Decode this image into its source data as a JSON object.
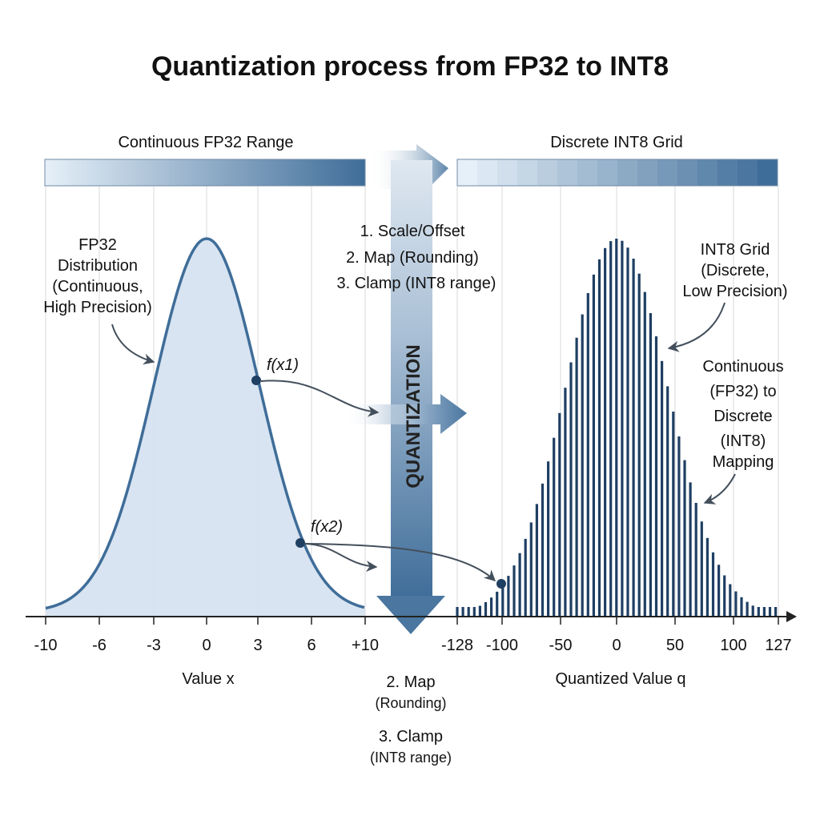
{
  "title": "Quantization process from FP32 to INT8",
  "left_bar_label": "Continuous FP32 Range",
  "right_bar_label": "Discrete INT8 Grid",
  "steps_top": [
    "1. Scale/Offset",
    "2. Map (Rounding)",
    "3. Clamp (INT8 range)"
  ],
  "vertical_label": "QUANTIZATION",
  "fp32_annotation": [
    "FP32",
    "Distribution",
    "(Continuous,",
    "High Precision)"
  ],
  "int8_annotation": [
    "INT8 Grid",
    "(Discrete,",
    "Low Precision)"
  ],
  "mapping_annotation": [
    "Continuous",
    "(FP32) to",
    "Discrete",
    "(INT8)",
    "Mapping"
  ],
  "point1_label": "f(x1)",
  "point2_label": "f(x2)",
  "left_axis": {
    "label": "Value x",
    "ticks": [
      "-10",
      "-6",
      "-3",
      "0",
      "3",
      "6",
      "+10"
    ]
  },
  "right_axis": {
    "label": "Quantized Value q",
    "ticks": [
      "-128",
      "-100",
      "-50",
      "0",
      "50",
      "100",
      "127"
    ]
  },
  "steps_bottom": [
    [
      "2. Map",
      "(Rounding)"
    ],
    [
      "3. Clamp",
      "(INT8 range)"
    ]
  ],
  "colors": {
    "primary": "#3f6d99",
    "dark": "#1f3f63",
    "fill": "#d6e3f0",
    "light": "#e4eef7"
  }
}
